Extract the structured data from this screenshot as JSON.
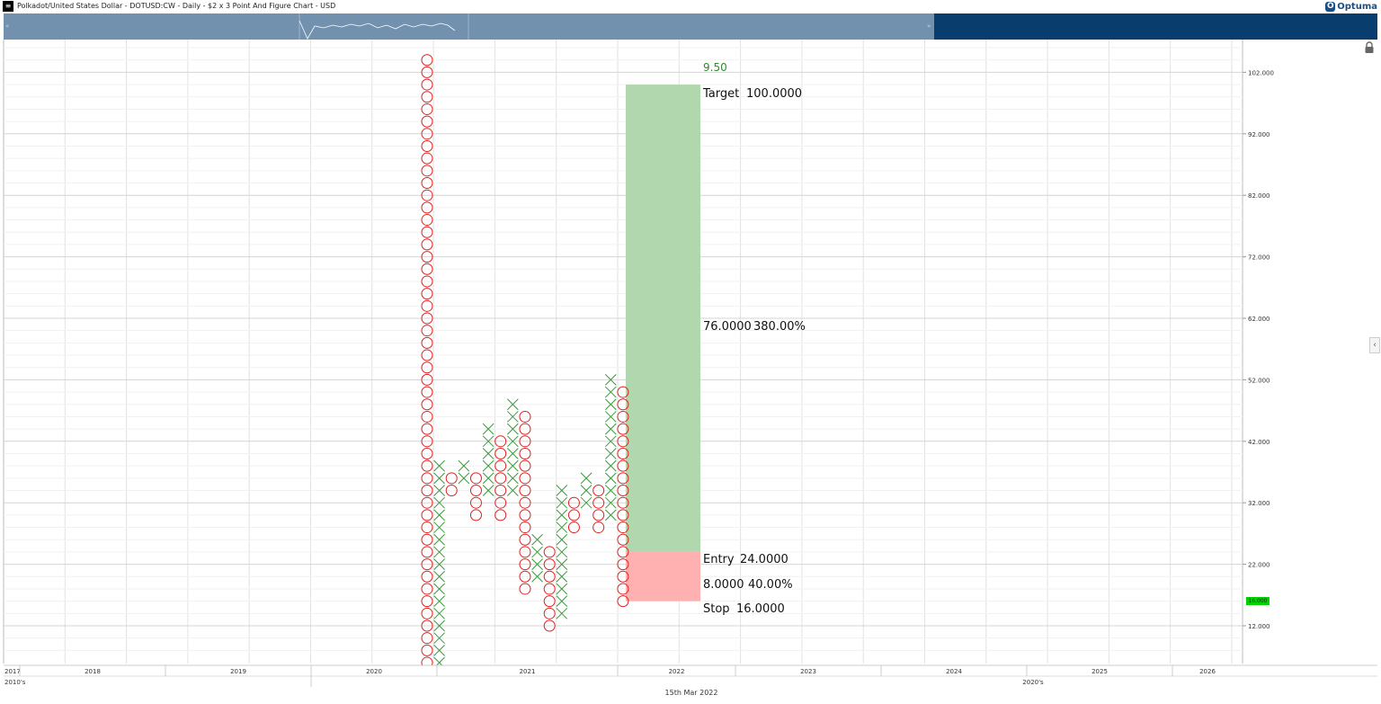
{
  "window": {
    "menu_icon": "menu-icon",
    "title": "Polkadot/United States Dollar - DOTUSD:CW - Daily - $2 x 3 Point And Figure Chart - USD",
    "logo_text": "Optuma"
  },
  "footer": {
    "cursor_date": "15th Mar 2022"
  },
  "colors": {
    "x_mark": "#3a9a3a",
    "o_mark": "#e02020",
    "target_zone": "#b1d7af",
    "stop_zone": "#ffb1b1",
    "navigator_left": "#7291ae",
    "navigator_right": "#083d6e",
    "current_price": "#00d100"
  },
  "chart_data": {
    "type": "point-and-figure",
    "box_size": 2,
    "reversal": 3,
    "y_ticks": [
      "102.000",
      "92.000",
      "82.000",
      "72.000",
      "62.000",
      "52.000",
      "42.000",
      "32.000",
      "22.000",
      "12.000"
    ],
    "year_labels": [
      "2017",
      "2018",
      "2019",
      "2020",
      "2021",
      "2022",
      "2023",
      "2024",
      "2025",
      "2026"
    ],
    "decade_labels": [
      "2010's",
      "2020's"
    ],
    "current_price_label": "16.000",
    "columns": [
      {
        "type": "O",
        "from": 6,
        "to": 104
      },
      {
        "type": "X",
        "from": 6,
        "to": 38
      },
      {
        "type": "O",
        "from": 34,
        "to": 36
      },
      {
        "type": "X",
        "from": 36,
        "to": 38
      },
      {
        "type": "O",
        "from": 30,
        "to": 36
      },
      {
        "type": "X",
        "from": 34,
        "to": 44
      },
      {
        "type": "O",
        "from": 30,
        "to": 42
      },
      {
        "type": "X",
        "from": 34,
        "to": 48
      },
      {
        "type": "O",
        "from": 18,
        "to": 46
      },
      {
        "type": "X",
        "from": 20,
        "to": 26
      },
      {
        "type": "O",
        "from": 12,
        "to": 24
      },
      {
        "type": "X",
        "from": 14,
        "to": 34
      },
      {
        "type": "O",
        "from": 28,
        "to": 32
      },
      {
        "type": "X",
        "from": 32,
        "to": 36
      },
      {
        "type": "O",
        "from": 28,
        "to": 34
      },
      {
        "type": "X",
        "from": 30,
        "to": 52
      },
      {
        "type": "O",
        "from": 16,
        "to": 50
      }
    ],
    "trade": {
      "target_label": "Target",
      "target_value": "100.0000",
      "target": 100,
      "ratio": "9.50",
      "reward_value": "76.0000",
      "reward_pct": "380.00%",
      "entry_label": "Entry",
      "entry_value": "24.0000",
      "entry": 24,
      "risk_value": "8.0000",
      "risk_pct": "40.00%",
      "stop_label": "Stop",
      "stop_value": "16.0000",
      "stop": 16
    }
  }
}
